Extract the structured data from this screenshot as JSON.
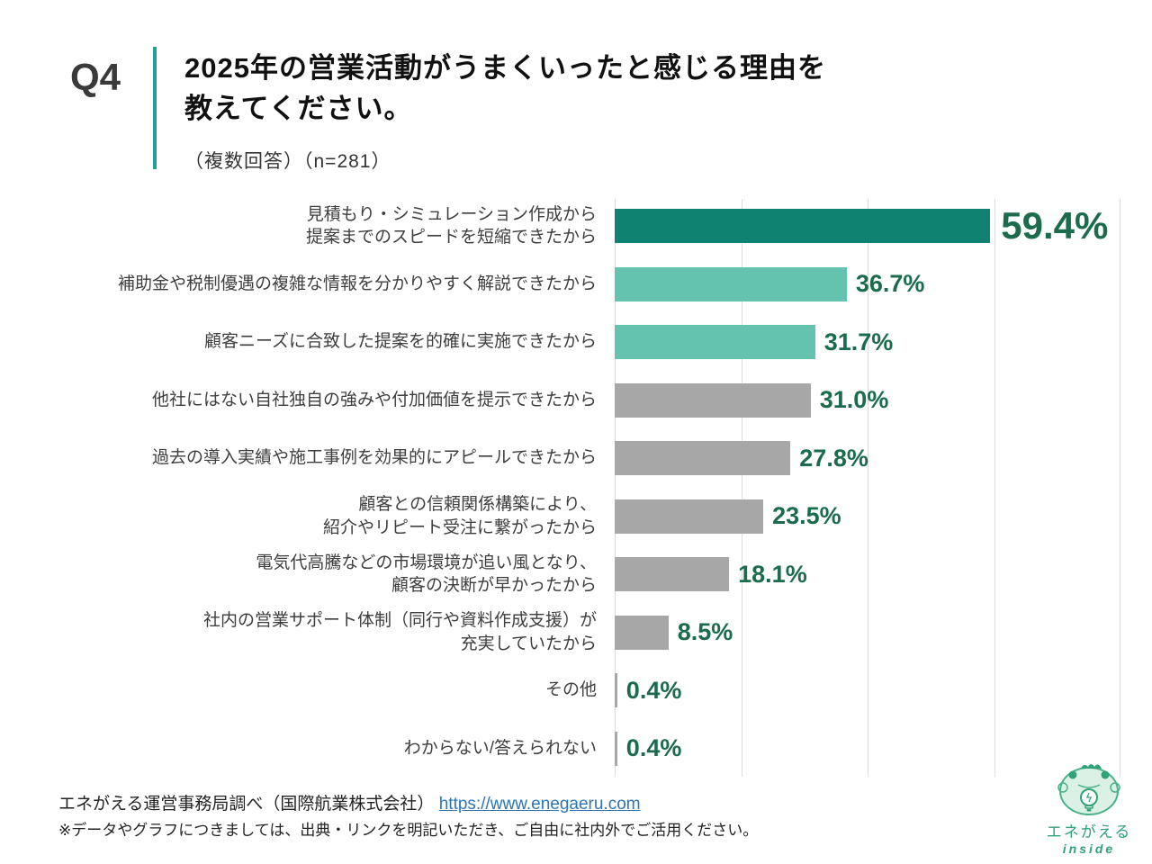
{
  "header": {
    "q_label": "Q4",
    "title": "2025年の営業活動がうまくいったと感じる理由を\n教えてください。",
    "subtitle": "（複数回答）（n=281）",
    "accent_color": "#23a094"
  },
  "chart_data": {
    "type": "bar",
    "orientation": "horizontal",
    "unit": "%",
    "title": "",
    "xlabel": "",
    "ylabel": "",
    "legend": "none",
    "axis": {
      "min": 0,
      "max": 80,
      "gridline_interval": 20,
      "gridline_color": "#dcdcdc",
      "grid": true
    },
    "categories": [
      "見積もり・シミュレーション作成から\n提案までのスピードを短縮できたから",
      "補助金や税制優遇の複雑な情報を分かりやすく解説できたから",
      "顧客ニーズに合致した提案を的確に実施できたから",
      "他社にはない自社独自の強みや付加価値を提示できたから",
      "過去の導入実績や施工事例を効果的にアピールできたから",
      "顧客との信頼関係構築により、\n紹介やリピート受注に繋がったから",
      "電気代高騰などの市場環境が追い風となり、\n顧客の決断が早かったから",
      "社内の営業サポート体制（同行や資料作成支援）が\n充実していたから",
      "その他",
      "わからない/答えられない"
    ],
    "values": [
      59.4,
      36.7,
      31.7,
      31.0,
      27.8,
      23.5,
      18.1,
      8.5,
      0.4,
      0.4
    ],
    "value_labels": [
      "59.4%",
      "36.7%",
      "31.7%",
      "31.0%",
      "27.8%",
      "23.5%",
      "18.1%",
      "8.5%",
      "0.4%",
      "0.4%"
    ],
    "bar_colors": [
      "#0f8271",
      "#63c3ae",
      "#63c3ae",
      "#a7a7a7",
      "#a7a7a7",
      "#a7a7a7",
      "#a7a7a7",
      "#a7a7a7",
      "#a7a7a7",
      "#a7a7a7"
    ],
    "value_label_color": "#1a6c4c"
  },
  "footer": {
    "source_text": "エネがえる運営事務局調べ（国際航業株式会社）",
    "source_link": "https://www.enegaeru.com",
    "note": "※データやグラフにつきましては、出典・リンクを明記いただき、ご自由に社内外でご活用ください。",
    "link_color": "#2e75b6"
  },
  "logo": {
    "name": "エネがえる",
    "tagline": "inside",
    "color": "#2fa277"
  }
}
